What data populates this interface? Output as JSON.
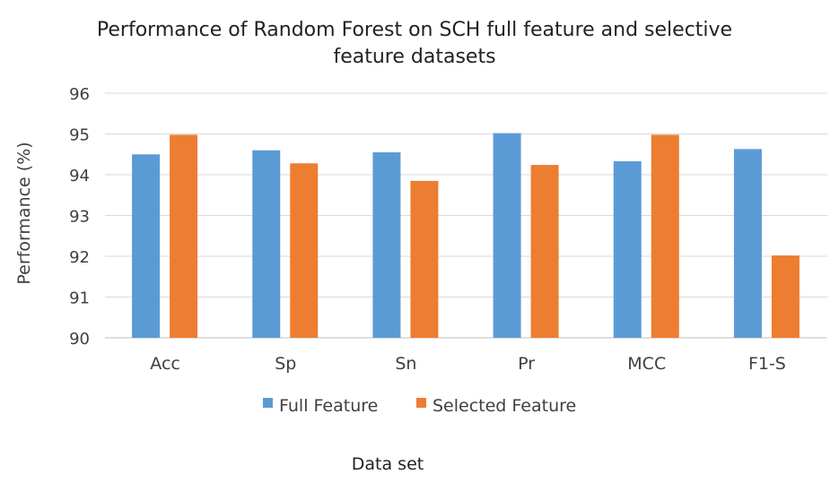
{
  "chart_data": {
    "type": "bar",
    "title": "Performance of Random Forest on SCH full feature and selective feature datasets",
    "title_lines": [
      "Performance of Random Forest on SCH full feature and selective",
      "feature datasets"
    ],
    "xlabel": "Data set",
    "ylabel": "Performance (%)",
    "ylim": [
      90,
      96
    ],
    "yticks": [
      90,
      91,
      92,
      93,
      94,
      95,
      96
    ],
    "categories": [
      "Acc",
      "Sp",
      "Sn",
      "Pr",
      "MCC",
      "F1-S"
    ],
    "series": [
      {
        "name": "Full Feature",
        "color": "#5b9bd5",
        "values": [
          94.5,
          94.6,
          94.55,
          95.02,
          94.33,
          94.63
        ]
      },
      {
        "name": "Selected Feature",
        "color": "#ed7d31",
        "values": [
          94.98,
          94.28,
          93.85,
          94.24,
          94.98,
          92.02
        ]
      }
    ],
    "grid": true,
    "legend_position": "bottom"
  }
}
